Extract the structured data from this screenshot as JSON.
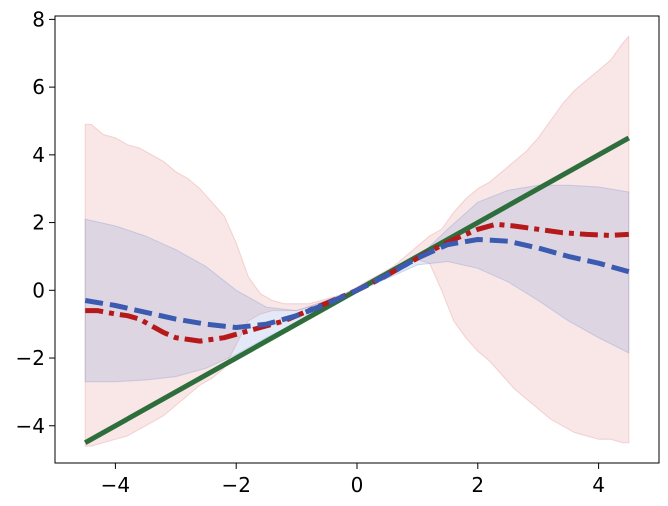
{
  "chart_data": {
    "type": "line",
    "title": "",
    "xlabel": "",
    "ylabel": "",
    "xlim": [
      -5,
      5
    ],
    "ylim": [
      -5.1,
      8.1
    ],
    "xticks": [
      -4,
      -2,
      0,
      2,
      4
    ],
    "xtick_labels": [
      "−4",
      "−2",
      "0",
      "2",
      "4"
    ],
    "yticks": [
      -4,
      -2,
      0,
      2,
      4,
      6,
      8
    ],
    "ytick_labels": [
      "−4",
      "−2",
      "0",
      "2",
      "4",
      "6",
      "8"
    ],
    "grid": false,
    "legend": "none",
    "bands": [
      {
        "color": "#e8a5a5",
        "opacity": 0.28,
        "x": [
          -4.5,
          -4.4,
          -4.2,
          -4.0,
          -3.8,
          -3.6,
          -3.4,
          -3.2,
          -3.0,
          -2.8,
          -2.6,
          -2.4,
          -2.2,
          -2.0,
          -1.8,
          -1.6,
          -1.4,
          -1.2,
          -1.0,
          -0.8,
          -0.6,
          -0.4,
          -0.2,
          0.0,
          0.2,
          0.4,
          0.6,
          0.8,
          1.0,
          1.2,
          1.4,
          1.6,
          1.8,
          2.0,
          2.2,
          2.4,
          2.6,
          2.8,
          3.0,
          3.2,
          3.4,
          3.6,
          3.8,
          4.0,
          4.2,
          4.4,
          4.5
        ],
        "upper": [
          4.9,
          4.9,
          4.6,
          4.5,
          4.3,
          4.2,
          4.0,
          3.8,
          3.5,
          3.3,
          3.0,
          2.6,
          2.2,
          1.4,
          0.4,
          -0.1,
          -0.3,
          -0.4,
          -0.4,
          -0.4,
          -0.3,
          -0.2,
          -0.1,
          0.1,
          0.3,
          0.5,
          0.7,
          1.0,
          1.3,
          1.6,
          1.8,
          2.3,
          2.7,
          3.0,
          3.2,
          3.5,
          3.8,
          4.1,
          4.5,
          5.0,
          5.5,
          5.9,
          6.2,
          6.5,
          6.8,
          7.3,
          7.5
        ],
        "lower": [
          -4.6,
          -4.6,
          -4.5,
          -4.4,
          -4.3,
          -4.1,
          -3.9,
          -3.7,
          -3.4,
          -3.1,
          -2.8,
          -2.6,
          -2.3,
          -1.6,
          -0.9,
          -0.7,
          -0.6,
          -0.6,
          -0.6,
          -0.5,
          -0.4,
          -0.3,
          -0.1,
          0.0,
          0.2,
          0.4,
          0.6,
          0.8,
          0.9,
          0.8,
          0.0,
          -0.9,
          -1.4,
          -1.8,
          -2.1,
          -2.5,
          -2.9,
          -3.2,
          -3.5,
          -3.8,
          -4.0,
          -4.2,
          -4.3,
          -4.4,
          -4.4,
          -4.5,
          -4.5
        ]
      },
      {
        "color": "#7f9cd4",
        "opacity": 0.22,
        "x": [
          -4.5,
          -4.0,
          -3.5,
          -3.0,
          -2.5,
          -2.0,
          -1.5,
          -1.0,
          -0.5,
          0.0,
          0.5,
          1.0,
          1.5,
          2.0,
          2.5,
          3.0,
          3.5,
          4.0,
          4.5
        ],
        "upper": [
          2.1,
          1.9,
          1.6,
          1.2,
          0.7,
          0.0,
          -0.5,
          -0.6,
          -0.3,
          0.05,
          0.45,
          0.95,
          1.8,
          2.6,
          2.95,
          3.1,
          3.1,
          3.05,
          2.9
        ],
        "lower": [
          -2.7,
          -2.7,
          -2.65,
          -2.55,
          -2.3,
          -1.9,
          -1.4,
          -0.95,
          -0.5,
          -0.05,
          0.35,
          0.75,
          0.85,
          0.65,
          0.25,
          -0.3,
          -0.9,
          -1.4,
          -1.85
        ]
      }
    ],
    "series": [
      {
        "color": "#2e6e3c",
        "dash": "solid",
        "x": [
          -4.5,
          4.5
        ],
        "y": [
          -4.5,
          4.5
        ]
      },
      {
        "color": "#b5191a",
        "dash": "dashdot",
        "x": [
          -4.5,
          -4.3,
          -4.0,
          -3.8,
          -3.6,
          -3.4,
          -3.2,
          -3.0,
          -2.8,
          -2.6,
          -2.4,
          -2.2,
          -2.0,
          -1.6,
          -1.2,
          -0.8,
          -0.4,
          0.0,
          0.4,
          0.8,
          1.2,
          1.6,
          2.0,
          2.3,
          2.6,
          3.0,
          3.4,
          3.8,
          4.2,
          4.5
        ],
        "y": [
          -0.6,
          -0.6,
          -0.7,
          -0.75,
          -0.85,
          -1.05,
          -1.25,
          -1.4,
          -1.45,
          -1.5,
          -1.45,
          -1.4,
          -1.3,
          -1.1,
          -0.9,
          -0.6,
          -0.3,
          0.0,
          0.35,
          0.75,
          1.15,
          1.5,
          1.8,
          1.95,
          1.9,
          1.8,
          1.7,
          1.65,
          1.62,
          1.65
        ]
      },
      {
        "color": "#3a5bb0",
        "dash": "dashed",
        "x": [
          -4.5,
          -4.0,
          -3.5,
          -3.0,
          -2.5,
          -2.0,
          -1.5,
          -1.0,
          -0.5,
          0.0,
          0.5,
          1.0,
          1.5,
          2.0,
          2.5,
          3.0,
          3.5,
          4.0,
          4.5
        ],
        "y": [
          -0.3,
          -0.45,
          -0.65,
          -0.85,
          -1.0,
          -1.1,
          -1.0,
          -0.75,
          -0.4,
          0.0,
          0.45,
          0.95,
          1.35,
          1.5,
          1.45,
          1.25,
          1.0,
          0.8,
          0.55
        ]
      }
    ]
  }
}
